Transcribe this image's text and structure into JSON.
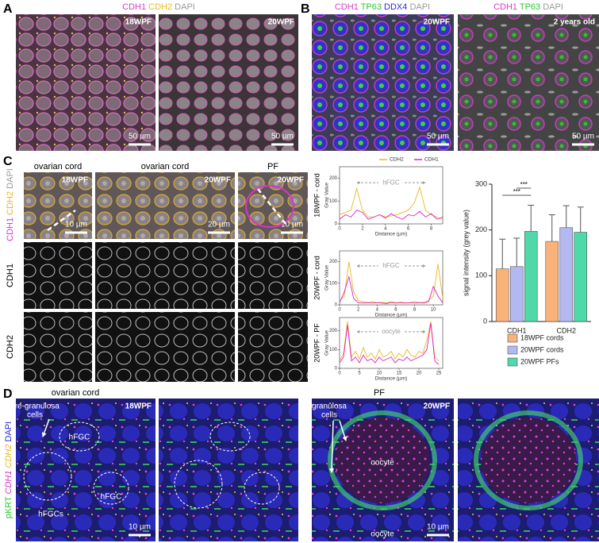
{
  "panels": {
    "A": {
      "letter": "A",
      "stain": [
        {
          "text": "CDH1",
          "color": "#d63cc8"
        },
        {
          "text": "CDH2",
          "color": "#e8b820"
        },
        {
          "text": "DAPI",
          "color": "#999999"
        }
      ],
      "images": [
        {
          "label": "18WPF",
          "scale": "50 µm"
        },
        {
          "label": "20WPF",
          "scale": "50 µm"
        }
      ]
    },
    "B": {
      "letter": "B",
      "images": [
        {
          "stain": [
            {
              "text": "CDH1",
              "color": "#d63cc8"
            },
            {
              "text": "TP63",
              "color": "#2ec62e"
            },
            {
              "text": "DDX4",
              "color": "#2a2ad8"
            },
            {
              "text": "DAPI",
              "color": "#999999"
            }
          ],
          "label": "20WPF",
          "scale": "50 µm"
        },
        {
          "stain": [
            {
              "text": "CDH1",
              "color": "#d63cc8"
            },
            {
              "text": "TP63",
              "color": "#2ec62e"
            },
            {
              "text": "DAPI",
              "color": "#999999"
            }
          ],
          "label": "2 years old",
          "scale": "50 µm"
        }
      ]
    },
    "C": {
      "letter": "C",
      "merge_stain": [
        {
          "text": "CDH1",
          "color": "#d63cc8"
        },
        {
          "text": "CDH2",
          "color": "#e8b820"
        },
        {
          "text": "DAPI",
          "color": "#999999"
        }
      ],
      "columns": [
        {
          "title": "ovarian cord",
          "label": "18WPF",
          "scale": "10 µm"
        },
        {
          "title": "ovarian cord",
          "label": "20WPF",
          "scale": "20 µm"
        },
        {
          "title": "PF",
          "label": "20WPF",
          "scale": "10 µm"
        }
      ],
      "row_labels": [
        "CDH1",
        "CDH2"
      ]
    },
    "D": {
      "letter": "D",
      "stain": [
        {
          "text": "pKRT",
          "color": "#2ec62e"
        },
        {
          "text": "CDH1",
          "color": "#d63cc8"
        },
        {
          "text": "CDH2",
          "color": "#e8b820"
        },
        {
          "text": "DAPI",
          "color": "#2a2ad8"
        }
      ],
      "left": {
        "title": "ovarian cord",
        "label": "18WPF",
        "scale": "10 µm",
        "annotations": [
          [
            "pre-granulosa",
            "cells"
          ],
          [
            "hFGC"
          ],
          [
            "hFGCs"
          ],
          [
            "hFGC"
          ]
        ]
      },
      "right": {
        "title": "PF",
        "label": "20WPF",
        "scale": "10 µm",
        "annotations": [
          [
            "granulosa",
            "cells"
          ],
          [
            "oocyte"
          ],
          [
            "oocyte"
          ]
        ]
      }
    }
  },
  "chart_data": [
    {
      "type": "line",
      "row_label": "18WPF - cord",
      "ylabel": "Gray Value",
      "xlabel": "Distance (µm)",
      "annotation": "hFGC",
      "legend": "top",
      "x": [
        0,
        0.5,
        1,
        1.5,
        2,
        2.5,
        3,
        3.5,
        4,
        4.5,
        5,
        5.5,
        6,
        6.5,
        7,
        7.5,
        8,
        8.5,
        9
      ],
      "series": [
        {
          "name": "CDH2",
          "color": "#e8b820",
          "values": [
            40,
            50,
            60,
            155,
            60,
            30,
            30,
            40,
            30,
            35,
            40,
            50,
            60,
            90,
            160,
            60,
            40,
            30,
            20
          ]
        },
        {
          "name": "CDH1",
          "color": "#e020c8",
          "values": [
            20,
            40,
            30,
            60,
            50,
            20,
            30,
            40,
            25,
            45,
            30,
            20,
            40,
            35,
            55,
            30,
            45,
            20,
            30
          ]
        }
      ],
      "xlim": [
        0,
        9
      ],
      "ylim": [
        0,
        250
      ],
      "xticks": [
        0,
        2,
        4,
        6,
        8
      ],
      "yticks": [
        0,
        100,
        200
      ]
    },
    {
      "type": "line",
      "row_label": "20WPF - cord",
      "ylabel": "Gray Value",
      "xlabel": "Distance (µm)",
      "annotation": "hFGC",
      "x": [
        0,
        0.5,
        1,
        1.5,
        2,
        2.5,
        3,
        3.5,
        4,
        4.5,
        5,
        5.5,
        6,
        6.5,
        7,
        7.5,
        8,
        8.5,
        9,
        9.5,
        10,
        10.5,
        11
      ],
      "series": [
        {
          "name": "CDH2",
          "color": "#e8b820",
          "values": [
            20,
            40,
            200,
            60,
            20,
            15,
            10,
            15,
            10,
            12,
            10,
            15,
            10,
            12,
            10,
            10,
            15,
            10,
            12,
            20,
            40,
            190,
            30
          ]
        },
        {
          "name": "CDH1",
          "color": "#e020c8",
          "values": [
            10,
            60,
            130,
            30,
            10,
            8,
            10,
            8,
            10,
            8,
            6,
            10,
            8,
            10,
            8,
            10,
            8,
            10,
            8,
            15,
            85,
            40,
            10
          ]
        }
      ],
      "xlim": [
        0,
        11
      ],
      "ylim": [
        0,
        250
      ],
      "xticks": [
        0,
        2,
        4,
        6,
        8,
        10
      ],
      "yticks": [
        0,
        100,
        200
      ]
    },
    {
      "type": "line",
      "row_label": "20WPF - PF",
      "ylabel": "Gray Value",
      "xlabel": "Distance (µm)",
      "annotation": "oocyte",
      "x": [
        0,
        1,
        2,
        3,
        4,
        5,
        6,
        7,
        8,
        9,
        10,
        11,
        12,
        13,
        14,
        15,
        16,
        17,
        18,
        19,
        20,
        21,
        22,
        23,
        24,
        25
      ],
      "series": [
        {
          "name": "CDH2",
          "color": "#e8b820",
          "values": [
            40,
            80,
            250,
            60,
            90,
            50,
            110,
            60,
            80,
            50,
            100,
            60,
            70,
            90,
            50,
            80,
            60,
            100,
            70,
            60,
            90,
            80,
            150,
            250,
            60,
            40
          ]
        },
        {
          "name": "CDH1",
          "color": "#e020c8",
          "values": [
            30,
            60,
            230,
            40,
            60,
            30,
            70,
            40,
            50,
            30,
            60,
            40,
            50,
            60,
            30,
            50,
            40,
            60,
            40,
            50,
            60,
            70,
            100,
            240,
            40,
            20
          ]
        }
      ],
      "xlim": [
        0,
        26
      ],
      "ylim": [
        0,
        270
      ],
      "xticks": [
        0,
        5,
        10,
        15,
        20,
        25
      ],
      "yticks": [
        0,
        100,
        200
      ]
    },
    {
      "type": "bar",
      "ylabel": "signal intensity (grey value)",
      "categories": [
        "CDH1",
        "CDH2"
      ],
      "series": [
        {
          "name": "18WPF cords",
          "color": "#f9b27a",
          "values": [
            115,
            175
          ],
          "errors": [
            65,
            58
          ]
        },
        {
          "name": "20WPF cords",
          "color": "#b3b8f0",
          "values": [
            120,
            205
          ],
          "errors": [
            62,
            48
          ]
        },
        {
          "name": "20WPF PFs",
          "color": "#4fd8a8",
          "values": [
            197,
            195
          ],
          "errors": [
            57,
            55
          ]
        }
      ],
      "ylim": [
        0,
        300
      ],
      "yticks": [
        0,
        100,
        200,
        300
      ],
      "annotations": [
        "***",
        "***"
      ],
      "legend": "bottom"
    }
  ]
}
